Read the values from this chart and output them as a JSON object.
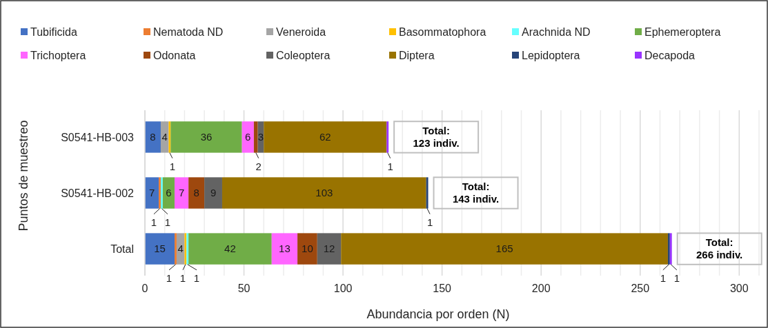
{
  "chart_data": {
    "type": "bar",
    "orientation": "horizontal",
    "stacked": true,
    "xlabel": "Abundancia por orden (N)",
    "ylabel": "Puntos de muestreo",
    "categories": [
      "S0541-HB-003",
      "S0541-HB-002",
      "Total"
    ],
    "xlim": [
      0,
      310
    ],
    "xticks": [
      0,
      {
        "value": 10,
        "label": null
      },
      {
        "value": 20,
        "label": null
      },
      {
        "value": 30,
        "label": null
      },
      {
        "value": 40,
        "label": null
      },
      50,
      {
        "value": 60,
        "label": null
      },
      {
        "value": 70,
        "label": null
      },
      {
        "value": 80,
        "label": null
      },
      {
        "value": 90,
        "label": null
      },
      100,
      {
        "value": 110,
        "label": null
      },
      {
        "value": 120,
        "label": null
      },
      {
        "value": 130,
        "label": null
      },
      {
        "value": 140,
        "label": null
      },
      150,
      {
        "value": 160,
        "label": null
      },
      {
        "value": 170,
        "label": null
      },
      {
        "value": 180,
        "label": null
      },
      {
        "value": 190,
        "label": null
      },
      200,
      {
        "value": 210,
        "label": null
      },
      {
        "value": 220,
        "label": null
      },
      {
        "value": 230,
        "label": null
      },
      {
        "value": 240,
        "label": null
      },
      250,
      {
        "value": 260,
        "label": null
      },
      {
        "value": 270,
        "label": null
      },
      {
        "value": 280,
        "label": null
      },
      {
        "value": 290,
        "label": null
      },
      300,
      {
        "value": 310,
        "label": null
      }
    ],
    "grid": "x",
    "legend": "top",
    "series": [
      {
        "name": "Tubificida",
        "color": "#4472c4",
        "values": [
          8,
          7,
          15
        ],
        "value_labels": [
          "8",
          "7",
          "15"
        ]
      },
      {
        "name": "Nematoda ND",
        "color": "#ed7d31",
        "values": [
          0,
          1,
          1
        ],
        "value_labels": [
          null,
          "1",
          "1"
        ]
      },
      {
        "name": "Veneroida",
        "color": "#a5a5a5",
        "values": [
          4,
          0,
          4
        ],
        "value_labels": [
          "4",
          null,
          "4"
        ]
      },
      {
        "name": "Basommatophora",
        "color": "#ffc000",
        "values": [
          1,
          0,
          1
        ],
        "value_labels": [
          "1",
          null,
          "1"
        ]
      },
      {
        "name": "Arachnida ND",
        "color": "#66ffff",
        "values": [
          0,
          1,
          1
        ],
        "value_labels": [
          null,
          "1",
          "1"
        ]
      },
      {
        "name": "Ephemeroptera",
        "color": "#70ad47",
        "values": [
          36,
          6,
          42
        ],
        "value_labels": [
          "36",
          "6",
          "42"
        ]
      },
      {
        "name": "Trichoptera",
        "color": "#ff66ff",
        "values": [
          6,
          7,
          13
        ],
        "value_labels": [
          "6",
          "7",
          "13"
        ]
      },
      {
        "name": "Odonata",
        "color": "#9e480e",
        "values": [
          2,
          8,
          10
        ],
        "value_labels": [
          "2",
          "8",
          "10"
        ]
      },
      {
        "name": "Coleoptera",
        "color": "#636363",
        "values": [
          3,
          9,
          12
        ],
        "value_labels": [
          "3",
          "9",
          "12"
        ]
      },
      {
        "name": "Diptera",
        "color": "#997300",
        "values": [
          62,
          103,
          165
        ],
        "value_labels": [
          "62",
          "103",
          "165"
        ]
      },
      {
        "name": "Lepidoptera",
        "color": "#264478",
        "values": [
          0,
          1,
          1
        ],
        "value_labels": [
          null,
          "1",
          "1"
        ]
      },
      {
        "name": "Decapoda",
        "color": "#9933ff",
        "values": [
          1,
          0,
          1
        ],
        "value_labels": [
          "1",
          null,
          "1"
        ]
      }
    ],
    "totals": [
      "Total:\n123 indiv.",
      "Total:\n143 indiv.",
      "Total:\n266 indiv."
    ]
  }
}
